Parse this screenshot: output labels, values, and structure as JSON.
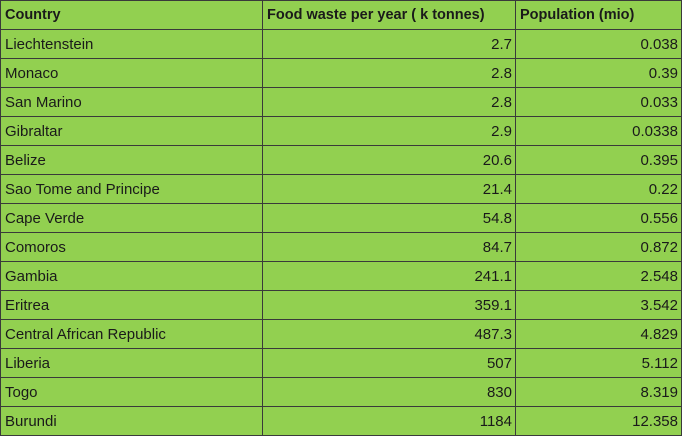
{
  "table": {
    "headers": [
      "Country",
      "Food waste per year ( k tonnes)",
      "Population (mio)"
    ],
    "rows": [
      [
        "Liechtenstein",
        "2.7",
        "0.038"
      ],
      [
        "Monaco",
        "2.8",
        "0.39"
      ],
      [
        "San Marino",
        "2.8",
        "0.033"
      ],
      [
        "Gibraltar",
        "2.9",
        "0.0338"
      ],
      [
        "Belize",
        "20.6",
        "0.395"
      ],
      [
        "Sao Tome and Principe",
        "21.4",
        "0.22"
      ],
      [
        "Cape Verde",
        "54.8",
        "0.556"
      ],
      [
        "Comoros",
        "84.7",
        "0.872"
      ],
      [
        "Gambia",
        "241.1",
        "2.548"
      ],
      [
        "Eritrea",
        "359.1",
        "3.542"
      ],
      [
        "Central African Republic",
        "487.3",
        "4.829"
      ],
      [
        "Liberia",
        "507",
        "5.112"
      ],
      [
        "Togo",
        "830",
        "8.319"
      ],
      [
        "Burundi",
        "1184",
        "12.358"
      ]
    ]
  },
  "colors": {
    "cell_background": "#92d050",
    "border": "#3a3a3a"
  }
}
